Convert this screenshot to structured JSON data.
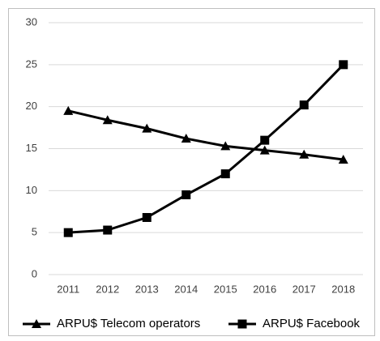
{
  "chart_data": {
    "type": "line",
    "categories": [
      "2011",
      "2012",
      "2013",
      "2014",
      "2015",
      "2016",
      "2017",
      "2018"
    ],
    "series": [
      {
        "name": "ARPU$ Telecom operators",
        "color": "#000000",
        "marker": "triangle",
        "values": [
          19.5,
          18.4,
          17.4,
          16.2,
          15.3,
          14.8,
          14.3,
          13.7
        ]
      },
      {
        "name": "ARPU$ Facebook",
        "color": "#000000",
        "marker": "square",
        "values": [
          5.0,
          5.3,
          6.8,
          9.5,
          12.0,
          16.0,
          20.2,
          25.0
        ]
      }
    ],
    "ylim": [
      0,
      30
    ],
    "yticks": [
      0,
      5,
      10,
      15,
      20,
      25,
      30
    ],
    "grid": true,
    "legend": "bottom"
  }
}
